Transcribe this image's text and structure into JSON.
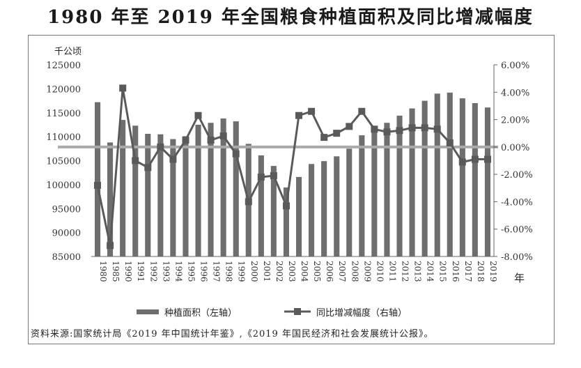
{
  "title": "1980 年至 2019 年全国粮食种植面积及同比增减幅度",
  "source_note": "资料来源:国家统计局《2019 年中国统计年鉴》,《2019 年国民经济和社会发展统计公报》。",
  "colors": {
    "bar": "#6e6e6e",
    "line": "#5a5a5a",
    "zero_line": "#aaaaaa"
  },
  "chart_data": {
    "type": "bar",
    "left_unit": "千公顷",
    "right_unit": "",
    "xlabel": "年",
    "categories": [
      "1980",
      "1985",
      "1990",
      "1991",
      "1992",
      "1993",
      "1994",
      "1995",
      "1996",
      "1997",
      "1998",
      "1999",
      "2000",
      "2001",
      "2002",
      "2003",
      "2004",
      "2005",
      "2006",
      "2007",
      "2008",
      "2009",
      "2010",
      "2011",
      "2012",
      "2013",
      "2014",
      "2015",
      "2016",
      "2017",
      "2018",
      "2019"
    ],
    "left_axis": {
      "ylim": [
        85000,
        125000
      ],
      "ticks": [
        "125000",
        "120000",
        "115000",
        "110000",
        "105000",
        "100000",
        "95000",
        "90000",
        "85000"
      ]
    },
    "right_axis": {
      "ylim": [
        -8,
        6
      ],
      "ticks": [
        "6.00%",
        "4.00%",
        "2.00%",
        "0.00%",
        "-2.00%",
        "-4.00%",
        "-6.00%",
        "-8.00%"
      ]
    },
    "series": [
      {
        "name": "种植面积（左轴）",
        "kind": "bar",
        "axis": "left",
        "values": [
          117200,
          108800,
          113500,
          112300,
          110600,
          110500,
          109500,
          110100,
          112500,
          112900,
          113800,
          113200,
          108500,
          106100,
          103900,
          99400,
          101600,
          104300,
          104900,
          105900,
          107500,
          110300,
          111700,
          112900,
          114400,
          115900,
          117500,
          119000,
          119200,
          118000,
          117000,
          116100
        ]
      },
      {
        "name": "同比增减幅度（右轴）",
        "kind": "line",
        "axis": "right",
        "values": [
          -2.8,
          -7.2,
          4.3,
          -1.0,
          -1.5,
          0.0,
          -0.9,
          0.5,
          2.3,
          0.5,
          0.8,
          -0.5,
          -4.0,
          -2.2,
          -2.1,
          -4.3,
          2.3,
          2.6,
          0.7,
          1.0,
          1.5,
          2.6,
          1.3,
          1.1,
          1.2,
          1.4,
          1.4,
          1.3,
          0.3,
          -1.1,
          -0.9,
          -0.9
        ]
      }
    ],
    "grid": false,
    "legend_position": "bottom"
  }
}
